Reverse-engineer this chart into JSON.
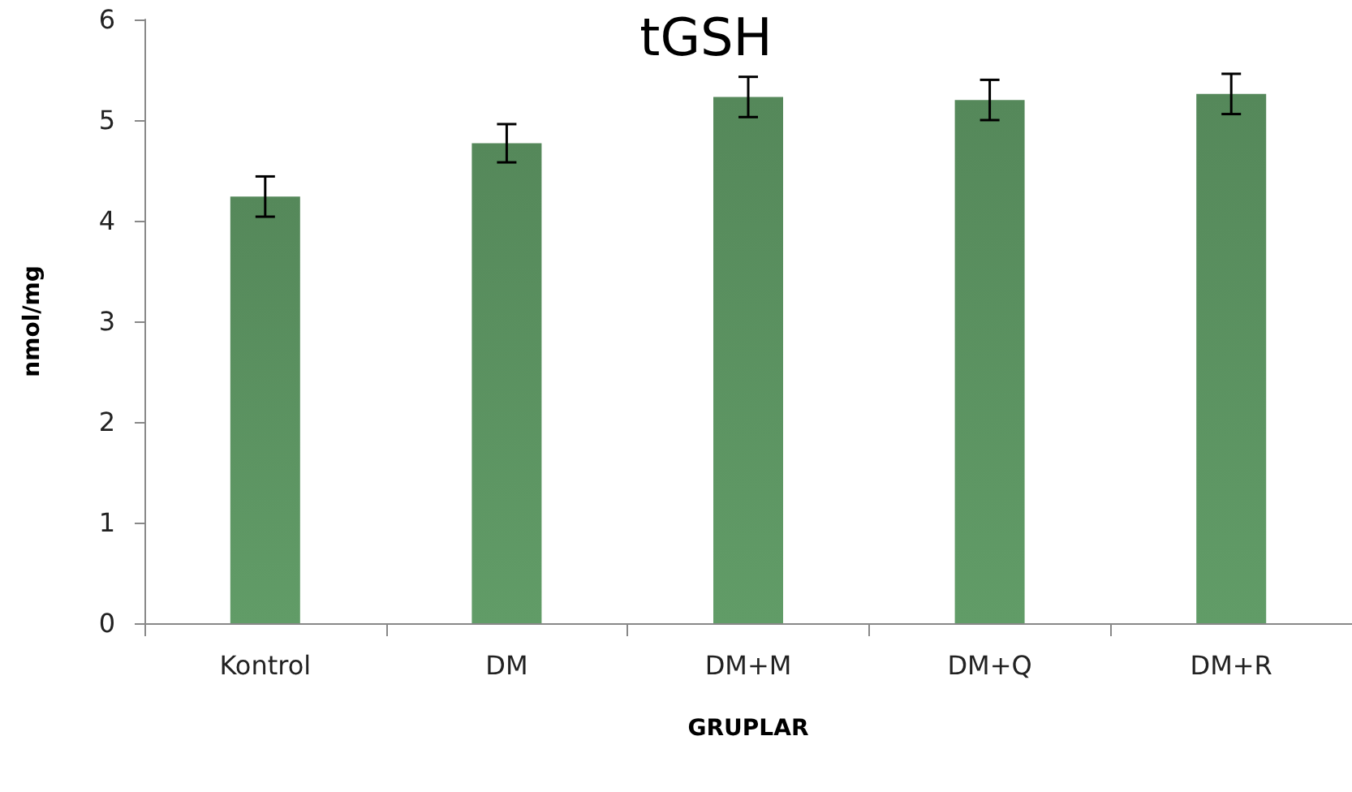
{
  "chart_data": {
    "type": "bar",
    "title": "tGSH",
    "xlabel": "GRUPLAR",
    "ylabel": "nmol/mg",
    "categories": [
      "Kontrol",
      "DM",
      "DM+M",
      "DM+Q",
      "DM+R"
    ],
    "values": [
      4.24,
      4.77,
      5.23,
      5.2,
      5.26
    ],
    "errors": [
      0.2,
      0.19,
      0.2,
      0.2,
      0.2
    ],
    "color": "#55885a",
    "ylim": [
      0,
      6
    ],
    "yticks": [
      0,
      1,
      2,
      3,
      4,
      5,
      6
    ],
    "grid": false
  }
}
